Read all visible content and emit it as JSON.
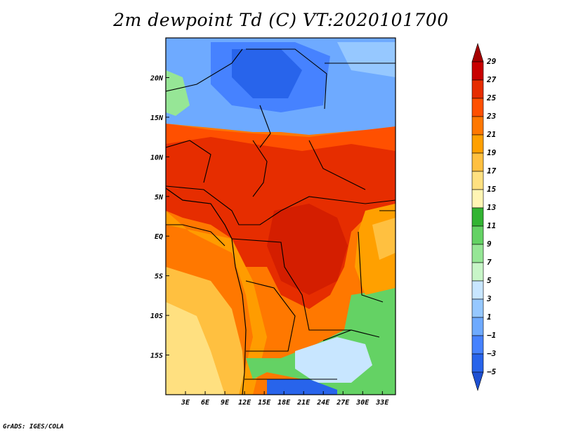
{
  "title": "2m dewpoint Td (C) VT:2020101700",
  "footer": "GrADS: IGES/COLA",
  "map": {
    "lon_range": [
      0,
      35
    ],
    "lat_range": [
      -20,
      25
    ],
    "xticks": [
      "3E",
      "6E",
      "9E",
      "12E",
      "15E",
      "18E",
      "21E",
      "24E",
      "27E",
      "30E",
      "33E"
    ],
    "yticks": [
      "20N",
      "15N",
      "10N",
      "5N",
      "EQ",
      "5S",
      "10S",
      "15S"
    ]
  },
  "colorbar": {
    "labels": [
      "29",
      "27",
      "25",
      "23",
      "21",
      "19",
      "17",
      "15",
      "13",
      "11",
      "9",
      "7",
      "5",
      "3",
      "1",
      "−1",
      "−3",
      "−5"
    ],
    "colors": [
      "#a50000",
      "#c80000",
      "#e62d00",
      "#ff5000",
      "#ff7800",
      "#ffa000",
      "#ffc040",
      "#ffe080",
      "#fff5b4",
      "#32b432",
      "#64d264",
      "#96e696",
      "#c8f5c8",
      "#c8e6ff",
      "#96c8ff",
      "#6eaaff",
      "#4682ff",
      "#2864eb",
      "#1e50d2"
    ]
  }
}
